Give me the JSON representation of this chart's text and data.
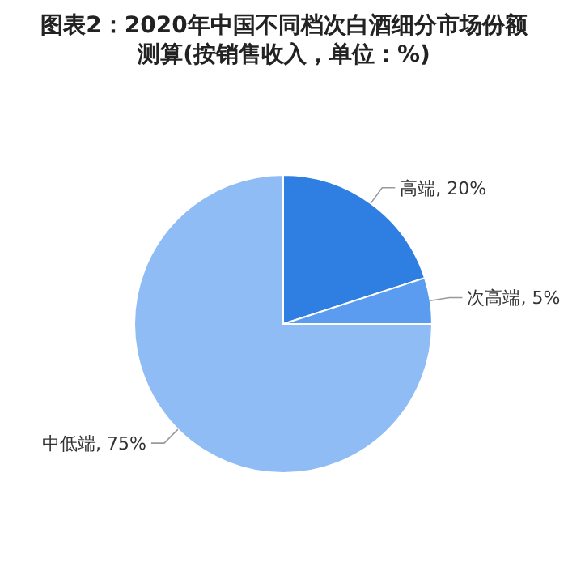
{
  "chart_data": {
    "type": "pie",
    "title": "图表2：2020年中国不同档次白酒细分市场份额测算(按销售收入，单位：%)",
    "categories": [
      "高端",
      "次高端",
      "中低端"
    ],
    "values": [
      20,
      5,
      75
    ],
    "colors": [
      "#2f7fe3",
      "#5b9cf0",
      "#8fbcf5"
    ],
    "value_labels": [
      "20%",
      "5%",
      "75%"
    ]
  }
}
